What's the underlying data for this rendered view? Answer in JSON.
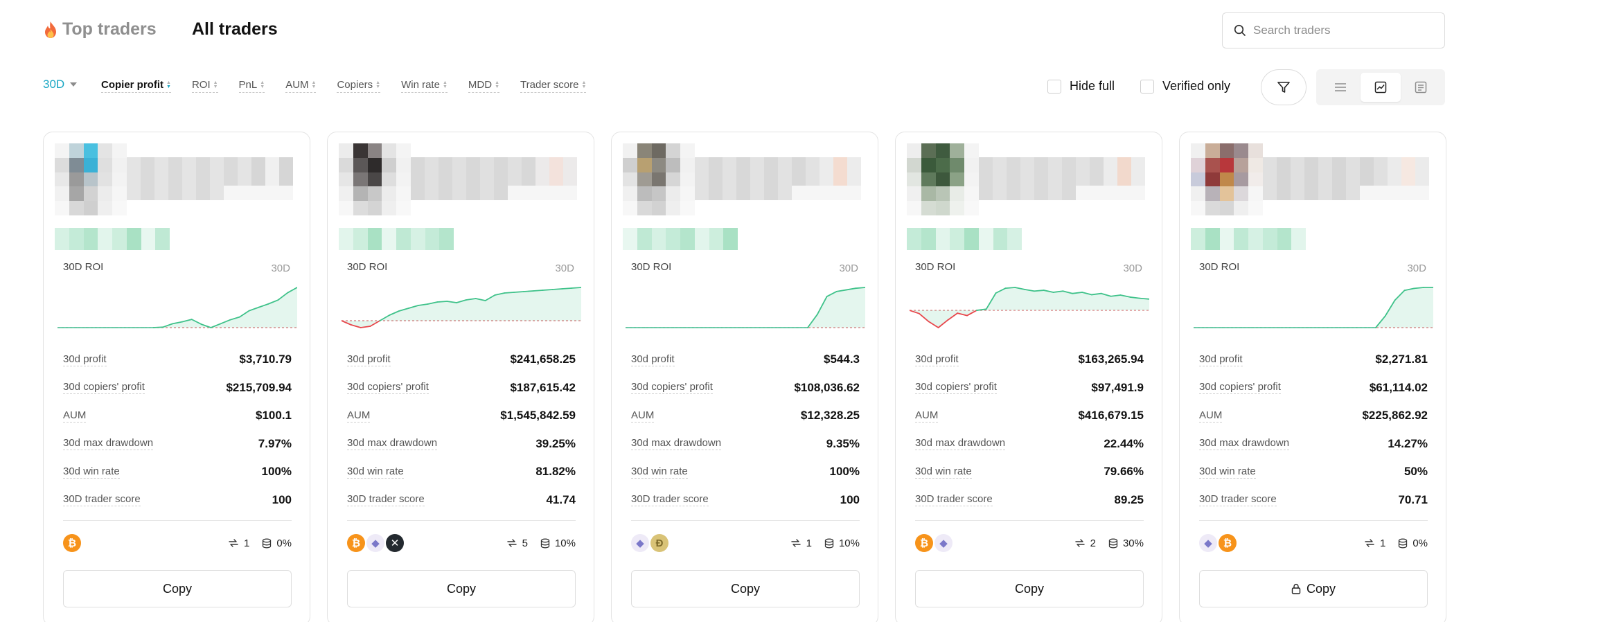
{
  "header": {
    "tab_top": "Top traders",
    "tab_all": "All traders",
    "search_placeholder": "Search traders"
  },
  "filters": {
    "period": "30D",
    "sorts": [
      {
        "label": "Copier profit",
        "active": true
      },
      {
        "label": "ROI",
        "active": false
      },
      {
        "label": "PnL",
        "active": false
      },
      {
        "label": "AUM",
        "active": false
      },
      {
        "label": "Copiers",
        "active": false
      },
      {
        "label": "Win rate",
        "active": false
      },
      {
        "label": "MDD",
        "active": false
      },
      {
        "label": "Trader score",
        "active": false
      }
    ],
    "hide_full": "Hide full",
    "verified_only": "Verified only"
  },
  "labels": {
    "roi": "30D ROI",
    "period": "30D",
    "stat_keys": [
      "30d profit",
      "30d copiers' profit",
      "AUM",
      "30d max drawdown",
      "30d win rate",
      "30D trader score"
    ],
    "copy": "Copy"
  },
  "colors": {
    "accent": "#1aa7c4",
    "positive": "#3fc28a",
    "negative": "#e8474c"
  },
  "cards": [
    {
      "stats": [
        "$3,710.79",
        "$215,709.94",
        "$100.1",
        "7.97%",
        "100%",
        "100"
      ],
      "coins": [
        "btc"
      ],
      "copiers": "1",
      "usage": "0%",
      "locked": false,
      "roi_series": [
        0,
        0,
        0,
        0,
        0,
        0,
        0,
        0,
        0,
        0,
        0,
        0.2,
        1.6,
        2.4,
        3.4,
        1.4,
        0,
        1.6,
        3.2,
        4.4,
        7.0,
        8.4,
        9.8,
        11.4,
        14.4,
        16.6
      ]
    },
    {
      "stats": [
        "$241,658.25",
        "$187,615.42",
        "$1,545,842.59",
        "39.25%",
        "81.82%",
        "41.74"
      ],
      "coins": [
        "btc",
        "eth",
        "xrp"
      ],
      "copiers": "5",
      "usage": "10%",
      "locked": false,
      "roi_series": [
        0,
        -3.0,
        -5.0,
        -4.0,
        0,
        4.0,
        7.0,
        9.0,
        11.0,
        12.0,
        13.5,
        14.0,
        13.0,
        15.0,
        16.0,
        14.5,
        18.5,
        20.0,
        20.5,
        21.0,
        21.5,
        22.0,
        22.5,
        23.0,
        23.5,
        24.0
      ]
    },
    {
      "stats": [
        "$544.3",
        "$108,036.62",
        "$12,328.25",
        "9.35%",
        "100%",
        "100"
      ],
      "coins": [
        "eth",
        "doge"
      ],
      "copiers": "1",
      "usage": "10%",
      "locked": false,
      "roi_series": [
        0,
        0,
        0,
        0,
        0,
        0,
        0,
        0,
        0,
        0,
        0,
        0,
        0,
        0,
        0,
        0,
        0,
        0,
        0,
        0,
        8.0,
        19.0,
        22.0,
        23.0,
        24.0,
        24.5
      ]
    },
    {
      "stats": [
        "$163,265.94",
        "$97,491.9",
        "$416,679.15",
        "22.44%",
        "79.66%",
        "89.25"
      ],
      "coins": [
        "btc",
        "eth"
      ],
      "copiers": "2",
      "usage": "30%",
      "locked": false,
      "roi_series": [
        0,
        -1.6,
        -5.6,
        -8.6,
        -4.8,
        -1.4,
        -2.6,
        0,
        0.6,
        8.6,
        11.0,
        11.4,
        10.4,
        9.6,
        10.0,
        9.0,
        9.6,
        8.4,
        9.0,
        7.8,
        8.4,
        7.0,
        7.6,
        6.6,
        6.0,
        5.6
      ]
    },
    {
      "stats": [
        "$2,271.81",
        "$61,114.02",
        "$225,862.92",
        "14.27%",
        "50%",
        "70.71"
      ],
      "coins": [
        "eth",
        "btc"
      ],
      "copiers": "1",
      "usage": "0%",
      "locked": true,
      "roi_series": [
        0,
        0,
        0,
        0,
        0,
        0,
        0,
        0,
        0,
        0,
        0,
        0,
        0,
        0,
        0,
        0,
        0,
        0,
        0,
        0,
        6.0,
        14.0,
        19.0,
        20.0,
        20.5,
        20.5
      ]
    }
  ]
}
